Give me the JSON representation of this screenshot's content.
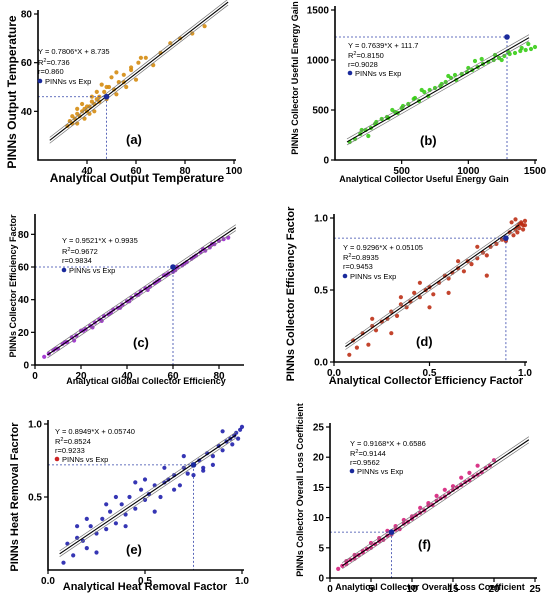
{
  "chart_data": [
    {
      "type": "scatter",
      "panel": "(a)",
      "xlabel": "Analytical Output Temperature",
      "ylabel": "PINNs Output Temperature",
      "xlim": [
        20,
        100
      ],
      "ylim": [
        20,
        80
      ],
      "xticks": [
        "40",
        "60",
        "80",
        "100"
      ],
      "yticks": [
        "40",
        "60",
        "80"
      ],
      "color": "#d4890a",
      "equation": "Y = 0.7806*X + 8.735",
      "r2": "0.736",
      "r": "r=0.860",
      "legend": "PINNs vs Exp",
      "legend_color": "#1a2a9c",
      "slope": 0.7806,
      "intercept": 8.735,
      "highlight": {
        "x": 48,
        "y": 46
      },
      "series": [
        {
          "x": [
            32,
            33,
            34,
            35,
            36,
            37,
            38,
            39,
            40,
            41,
            42,
            43,
            44,
            45,
            47,
            49,
            51,
            53,
            55,
            58,
            61,
            64,
            67,
            70,
            74,
            78,
            83,
            88,
            34,
            36,
            38,
            40,
            42,
            44,
            46,
            48,
            50,
            52,
            55,
            58,
            62,
            36,
            39,
            41,
            43,
            45,
            48,
            52,
            56,
            60
          ],
          "y": [
            34,
            36,
            35,
            37,
            39,
            38,
            40,
            41,
            40,
            42,
            44,
            43,
            45,
            46,
            48,
            50,
            49,
            52,
            55,
            57,
            60,
            62,
            59,
            64,
            68,
            70,
            72,
            75,
            38,
            41,
            43,
            42,
            46,
            48,
            51,
            50,
            54,
            56,
            52,
            58,
            62,
            35,
            37,
            39,
            40,
            44,
            45,
            47,
            50,
            53
          ]
        }
      ]
    },
    {
      "type": "scatter",
      "panel": "(b)",
      "xlabel": "Analytical Collector Useful Energy Gain",
      "ylabel": "PINNs Collector Useful Energy Gain",
      "xlim": [
        0,
        1500
      ],
      "ylim": [
        0,
        1500
      ],
      "xticks": [
        "500",
        "1000",
        "1500"
      ],
      "yticks": [
        "0",
        "500",
        "1000",
        "1500"
      ],
      "color": "#33cc11",
      "equation": "Y = 0.7639*X + 111.7",
      "r2": "0.8150",
      "r": "r=0.9028",
      "legend": "PINNs vs Exp",
      "legend_color": "#1a2a9c",
      "slope": 0.7639,
      "intercept": 111.7,
      "highlight": {
        "x": 1290,
        "y": 1230
      },
      "series": [
        {
          "x": [
            110,
            150,
            190,
            230,
            270,
            310,
            350,
            390,
            430,
            470,
            510,
            550,
            590,
            630,
            670,
            710,
            750,
            790,
            830,
            870,
            910,
            950,
            990,
            1030,
            1070,
            1110,
            1150,
            1190,
            1230,
            1270,
            1310,
            1350,
            1390,
            1430,
            1470,
            1500,
            200,
            300,
            400,
            500,
            600,
            700,
            800,
            900,
            1000,
            1100,
            1200,
            1300,
            1400,
            250,
            450,
            650,
            850,
            1050,
            1250,
            1450
          ],
          "y": [
            180,
            210,
            260,
            300,
            320,
            380,
            410,
            430,
            500,
            470,
            540,
            560,
            610,
            590,
            680,
            700,
            720,
            740,
            780,
            820,
            800,
            860,
            880,
            900,
            930,
            960,
            980,
            1000,
            1020,
            1040,
            1060,
            1070,
            1090,
            1100,
            1110,
            1130,
            300,
            360,
            420,
            520,
            620,
            640,
            760,
            850,
            920,
            1010,
            1050,
            1080,
            1120,
            240,
            480,
            700,
            840,
            990,
            1000,
            1160
          ]
        }
      ]
    },
    {
      "type": "scatter",
      "panel": "(c)",
      "xlabel": "Analytical Global Collector Efficiency",
      "ylabel": "PINNs Collector Efficiency Factor",
      "xlim": [
        0,
        90
      ],
      "ylim": [
        0,
        90
      ],
      "xticks": [
        "0",
        "20",
        "40",
        "60",
        "80"
      ],
      "yticks": [
        "0",
        "20",
        "40",
        "60",
        "80"
      ],
      "color": "#9922cc",
      "equation": "Y = 0.9521*X + 0.9935",
      "r2": "0.9672",
      "r": "r=0.9834",
      "legend": "PINNs vs Exp",
      "legend_color": "#1a2a9c",
      "slope": 0.9521,
      "intercept": 0.9935,
      "highlight": {
        "x": 60,
        "y": 60
      },
      "series": [
        {
          "x": [
            4,
            6,
            8,
            10,
            12,
            14,
            16,
            18,
            20,
            22,
            24,
            26,
            28,
            30,
            32,
            34,
            36,
            38,
            40,
            42,
            44,
            46,
            48,
            50,
            52,
            54,
            56,
            58,
            60,
            62,
            64,
            66,
            68,
            70,
            72,
            74,
            76,
            78,
            80,
            82,
            84,
            9,
            13,
            17,
            21,
            25,
            29,
            33,
            37,
            41,
            45,
            49,
            53,
            57,
            61,
            65,
            69,
            73,
            77
          ],
          "y": [
            5,
            7,
            9,
            10,
            13,
            14,
            17,
            18,
            21,
            22,
            24,
            26,
            28,
            30,
            31,
            34,
            35,
            37,
            39,
            41,
            43,
            45,
            47,
            48,
            50,
            52,
            55,
            56,
            57,
            60,
            61,
            63,
            65,
            67,
            69,
            70,
            72,
            74,
            76,
            77,
            78,
            10,
            14,
            15,
            21,
            23,
            27,
            32,
            35,
            39,
            43,
            46,
            51,
            55,
            58,
            62,
            66,
            71,
            74
          ]
        }
      ]
    },
    {
      "type": "scatter",
      "panel": "(d)",
      "xlabel": "Analytical Collector Efficiency Factor",
      "ylabel": "PINNs Collector Efficiency Factor",
      "xlim": [
        0,
        1.0
      ],
      "ylim": [
        0,
        1.0
      ],
      "xticks": [
        "0.0",
        "0.5",
        "1.0"
      ],
      "yticks": [
        "0.0",
        "0.5",
        "1.0"
      ],
      "color": "#bb2a10",
      "equation": "Y = 0.9296*X + 0.05105",
      "r2": "0.8935",
      "r": "r=0.9453",
      "legend": "PINNs vs Exp",
      "legend_color": "#1a2a9c",
      "slope": 0.9296,
      "intercept": 0.05105,
      "highlight": {
        "x": 0.9,
        "y": 0.86
      },
      "series": [
        {
          "x": [
            0.08,
            0.1,
            0.12,
            0.15,
            0.18,
            0.2,
            0.22,
            0.25,
            0.28,
            0.3,
            0.33,
            0.35,
            0.38,
            0.4,
            0.42,
            0.45,
            0.48,
            0.5,
            0.52,
            0.55,
            0.58,
            0.6,
            0.62,
            0.65,
            0.68,
            0.7,
            0.72,
            0.75,
            0.78,
            0.8,
            0.82,
            0.85,
            0.88,
            0.9,
            0.92,
            0.94,
            0.95,
            0.96,
            0.97,
            0.98,
            0.99,
            1.0,
            0.93,
            0.95,
            0.97,
            0.99,
            0.96,
            0.98,
            1.0,
            0.2,
            0.35,
            0.5,
            0.65,
            0.8,
            0.3,
            0.45,
            0.6,
            0.75
          ],
          "y": [
            0.05,
            0.15,
            0.1,
            0.2,
            0.12,
            0.25,
            0.22,
            0.28,
            0.3,
            0.35,
            0.32,
            0.4,
            0.38,
            0.42,
            0.48,
            0.45,
            0.5,
            0.52,
            0.47,
            0.55,
            0.6,
            0.58,
            0.62,
            0.65,
            0.63,
            0.7,
            0.68,
            0.72,
            0.76,
            0.74,
            0.8,
            0.82,
            0.85,
            0.84,
            0.9,
            0.88,
            0.92,
            0.94,
            0.93,
            0.96,
            0.95,
            0.98,
            0.97,
            0.99,
            0.96,
            0.92,
            0.9,
            0.97,
            0.95,
            0.3,
            0.45,
            0.38,
            0.7,
            0.6,
            0.2,
            0.55,
            0.48,
            0.8
          ]
        }
      ]
    },
    {
      "type": "scatter",
      "panel": "(e)",
      "xlabel": "Analytical Heat Removal Factor",
      "ylabel": "PINNs Heat Removal Facrtor",
      "xlim": [
        0,
        1.0
      ],
      "ylim": [
        0,
        1.0
      ],
      "xticks": [
        "0.0",
        "0.5",
        "1.0"
      ],
      "yticks": [
        "0.5",
        "1.0"
      ],
      "color": "#1a1aaa",
      "equation": "Y = 0.8949*X + 0.05740",
      "r2": "0.8524",
      "r": "r=0.9233",
      "legend": "PINNs vs Exp",
      "legend_color": "#cc2222",
      "slope": 0.8949,
      "intercept": 0.0574,
      "highlight": {
        "x": 0.75,
        "y": 0.72
      },
      "series": [
        {
          "x": [
            0.08,
            0.1,
            0.13,
            0.15,
            0.18,
            0.2,
            0.22,
            0.25,
            0.28,
            0.3,
            0.32,
            0.35,
            0.38,
            0.4,
            0.42,
            0.45,
            0.48,
            0.5,
            0.52,
            0.55,
            0.58,
            0.6,
            0.62,
            0.65,
            0.68,
            0.7,
            0.72,
            0.75,
            0.78,
            0.8,
            0.82,
            0.85,
            0.88,
            0.9,
            0.92,
            0.94,
            0.95,
            0.96,
            0.97,
            0.98,
            0.99,
            1.0,
            0.15,
            0.25,
            0.35,
            0.45,
            0.55,
            0.65,
            0.75,
            0.85,
            0.2,
            0.3,
            0.4,
            0.5,
            0.6,
            0.7,
            0.8,
            0.9
          ],
          "y": [
            0.05,
            0.18,
            0.1,
            0.22,
            0.2,
            0.15,
            0.3,
            0.25,
            0.35,
            0.28,
            0.4,
            0.32,
            0.45,
            0.38,
            0.5,
            0.42,
            0.55,
            0.48,
            0.52,
            0.58,
            0.5,
            0.6,
            0.62,
            0.65,
            0.58,
            0.7,
            0.66,
            0.72,
            0.75,
            0.7,
            0.8,
            0.78,
            0.85,
            0.82,
            0.88,
            0.9,
            0.86,
            0.92,
            0.94,
            0.9,
            0.96,
            0.98,
            0.3,
            0.12,
            0.5,
            0.6,
            0.4,
            0.55,
            0.65,
            0.72,
            0.35,
            0.45,
            0.3,
            0.62,
            0.7,
            0.78,
            0.68,
            0.95
          ]
        }
      ]
    },
    {
      "type": "scatter",
      "panel": "(f)",
      "xlabel": "Analytical Collector Overall Loss Coefficient",
      "ylabel": "PINNs Collector Overall Loss Coefficient",
      "xlim": [
        0,
        25
      ],
      "ylim": [
        0,
        25
      ],
      "xticks": [
        "0",
        "5",
        "10",
        "15",
        "20",
        "25"
      ],
      "yticks": [
        "0",
        "5",
        "10",
        "15",
        "20",
        "25"
      ],
      "color": "#d41a78",
      "equation": "Y = 0.9168*X + 0.6586",
      "r2": "0.9144",
      "r": "r=0.9562",
      "legend": "PINNs vs Exp",
      "legend_color": "#1a2a9c",
      "slope": 0.9168,
      "intercept": 0.6586,
      "highlight": {
        "x": 7.5,
        "y": 7.6
      },
      "series": [
        {
          "x": [
            1,
            1.5,
            2,
            2.5,
            3,
            3.5,
            4,
            4.5,
            5,
            5.5,
            6,
            6.5,
            7,
            7.5,
            8,
            8.5,
            9,
            9.5,
            10,
            10.5,
            11,
            11.5,
            12,
            12.5,
            13,
            13.5,
            14,
            14.5,
            15,
            15.5,
            16,
            16.5,
            17,
            17.5,
            18,
            18.5,
            19,
            19.5,
            20,
            2,
            3,
            4,
            5,
            6,
            7,
            8,
            9,
            10,
            11,
            12,
            13,
            14,
            15,
            16,
            17,
            18
          ],
          "y": [
            1.5,
            2,
            2.3,
            3,
            3.2,
            3.8,
            4.2,
            4.8,
            5,
            5.6,
            6.1,
            6.3,
            7,
            7.2,
            8,
            8.1,
            9,
            9.3,
            9.8,
            10.4,
            10.8,
            11.2,
            12,
            12.1,
            12.8,
            13.2,
            13.5,
            14.1,
            14.6,
            15,
            15.4,
            15.9,
            16.2,
            16.8,
            17.1,
            17.5,
            18.2,
            18.6,
            19.5,
            2.8,
            3.8,
            4.5,
            5.8,
            6.6,
            7.8,
            8.6,
            9.6,
            10.2,
            11.6,
            12.4,
            13.6,
            14.6,
            15.2,
            16.6,
            17.4,
            18.6
          ]
        }
      ]
    }
  ]
}
